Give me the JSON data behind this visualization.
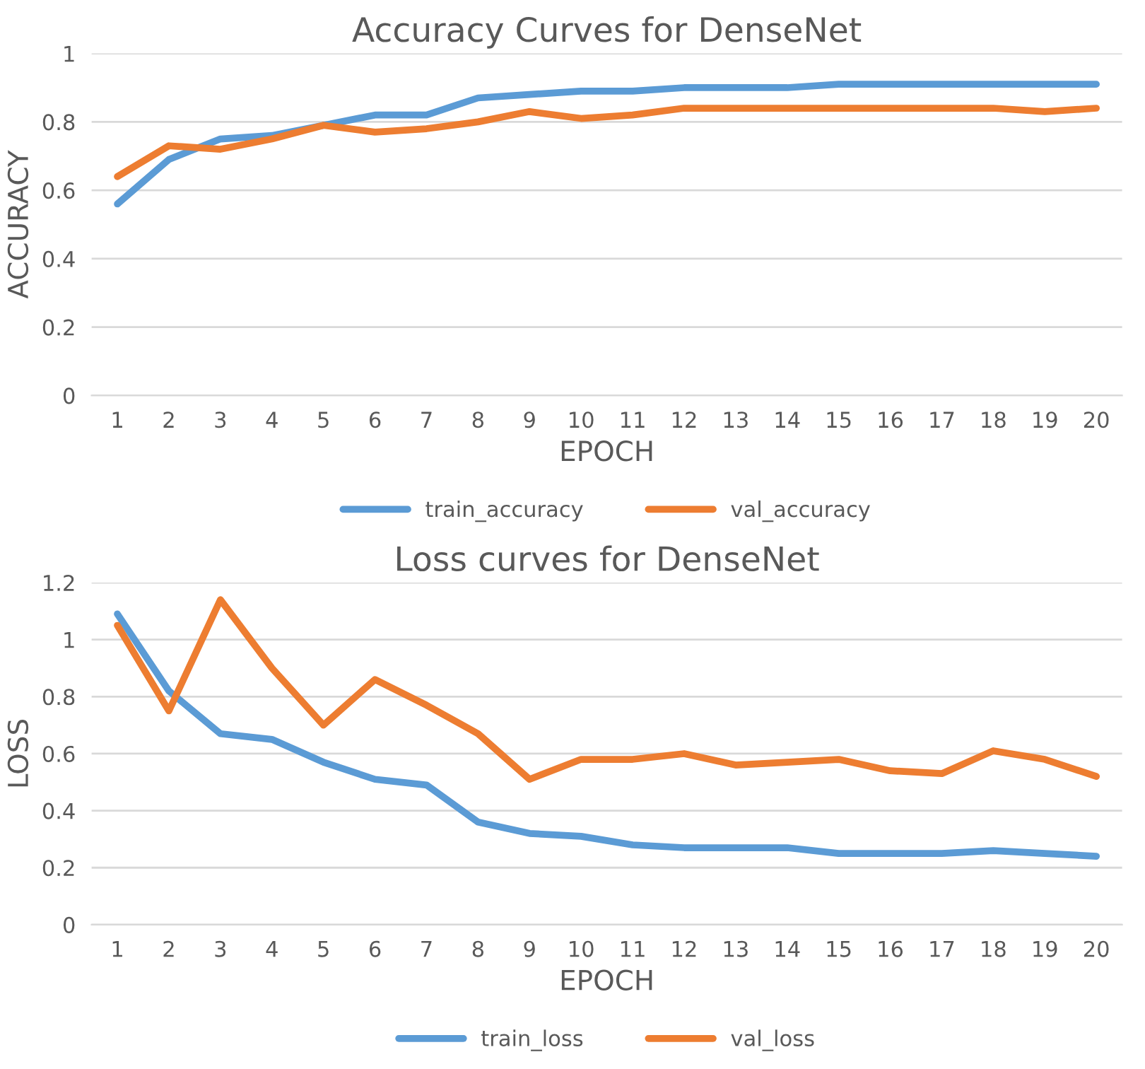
{
  "chart_data": [
    {
      "type": "line",
      "title": "Accuracy Curves for DenseNet",
      "xlabel": "EPOCH",
      "ylabel": "ACCURACY",
      "categories": [
        "1",
        "2",
        "3",
        "4",
        "5",
        "6",
        "7",
        "8",
        "9",
        "10",
        "11",
        "12",
        "13",
        "14",
        "15",
        "16",
        "17",
        "18",
        "19",
        "20"
      ],
      "series": [
        {
          "name": "train_accuracy",
          "color": "#5b9bd5",
          "values": [
            0.56,
            0.69,
            0.75,
            0.76,
            0.79,
            0.82,
            0.82,
            0.87,
            0.88,
            0.89,
            0.89,
            0.9,
            0.9,
            0.9,
            0.91,
            0.91,
            0.91,
            0.91,
            0.91,
            0.91
          ]
        },
        {
          "name": "val_accuracy",
          "color": "#ed7d31",
          "values": [
            0.64,
            0.73,
            0.72,
            0.75,
            0.79,
            0.77,
            0.78,
            0.8,
            0.83,
            0.81,
            0.82,
            0.84,
            0.84,
            0.84,
            0.84,
            0.84,
            0.84,
            0.84,
            0.83,
            0.84
          ]
        }
      ],
      "ylim": [
        0,
        1
      ],
      "yticks": [
        0,
        0.2,
        0.4,
        0.6,
        0.8,
        1
      ],
      "grid": "y",
      "legend": "bottom",
      "marker": "none",
      "line_style": "solid"
    },
    {
      "type": "line",
      "title": "Loss curves for DenseNet",
      "xlabel": "EPOCH",
      "ylabel": "LOSS",
      "categories": [
        "1",
        "2",
        "3",
        "4",
        "5",
        "6",
        "7",
        "8",
        "9",
        "10",
        "11",
        "12",
        "13",
        "14",
        "15",
        "16",
        "17",
        "18",
        "19",
        "20"
      ],
      "series": [
        {
          "name": "train_loss",
          "color": "#5b9bd5",
          "values": [
            1.09,
            0.82,
            0.67,
            0.65,
            0.57,
            0.51,
            0.49,
            0.36,
            0.32,
            0.31,
            0.28,
            0.27,
            0.27,
            0.27,
            0.25,
            0.25,
            0.25,
            0.26,
            0.25,
            0.24
          ]
        },
        {
          "name": "val_loss",
          "color": "#ed7d31",
          "values": [
            1.05,
            0.75,
            1.14,
            0.9,
            0.7,
            0.86,
            0.77,
            0.67,
            0.51,
            0.58,
            0.58,
            0.6,
            0.56,
            0.57,
            0.58,
            0.54,
            0.53,
            0.61,
            0.58,
            0.52
          ]
        }
      ],
      "ylim": [
        0,
        1.2
      ],
      "yticks": [
        0,
        0.2,
        0.4,
        0.6,
        0.8,
        1,
        1.2
      ],
      "grid": "y",
      "legend": "bottom",
      "marker": "none",
      "line_style": "solid"
    }
  ]
}
